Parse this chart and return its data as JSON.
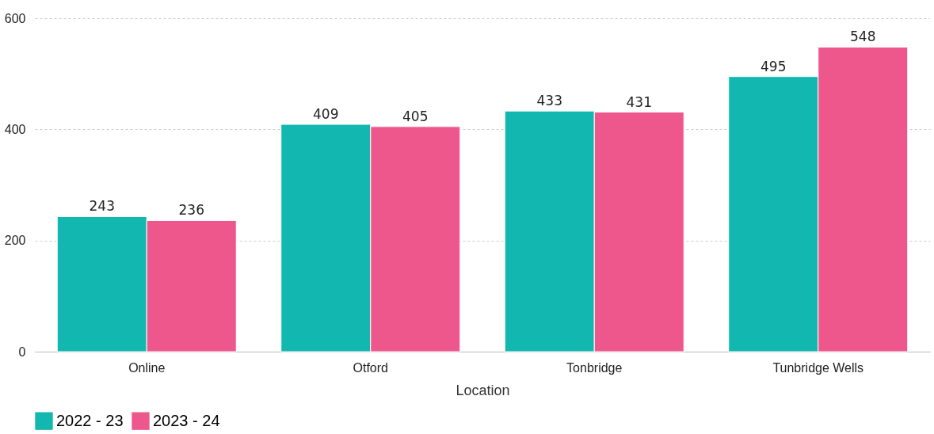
{
  "chart_data": {
    "type": "bar",
    "xlabel": "Location",
    "categories": [
      "Online",
      "Otford",
      "Tonbridge",
      "Tunbridge Wells"
    ],
    "series": [
      {
        "name": "2022 - 23",
        "color": "#12b8b0",
        "values": [
          243,
          409,
          433,
          495
        ]
      },
      {
        "name": "2023 - 24",
        "color": "#ee578b",
        "values": [
          236,
          405,
          431,
          548
        ]
      }
    ],
    "ylim": [
      0,
      600
    ],
    "yticks": [
      0,
      200,
      400,
      600
    ],
    "grid": "y",
    "legend": "bottom",
    "data_labels": true
  }
}
